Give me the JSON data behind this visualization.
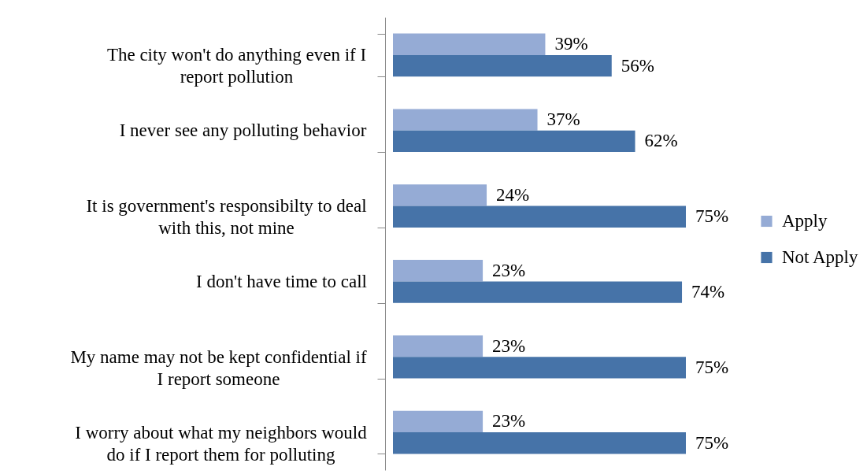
{
  "chart_data": {
    "type": "bar",
    "orientation": "horizontal",
    "categories": [
      "The city won't do anything even if I report pollution",
      "I never see any polluting behavior",
      "It is government's responsibilty to deal with this, not mine",
      "I don't have time to call",
      "My name may not be kept confidential if I report someone",
      "I worry about what my neighbors would do if I report them for polluting"
    ],
    "series": [
      {
        "name": "Apply",
        "color": "#95abd5",
        "values": [
          39,
          37,
          24,
          23,
          23,
          23
        ],
        "value_labels": [
          "39%",
          "37%",
          "24%",
          "23%",
          "23%",
          "23%"
        ]
      },
      {
        "name": "Not Apply",
        "color": "#4673a8",
        "values": [
          56,
          62,
          75,
          74,
          75,
          75
        ],
        "value_labels": [
          "56%",
          "62%",
          "75%",
          "74%",
          "75%",
          "75%"
        ]
      }
    ],
    "legend": "right",
    "tick_labels": "y"
  }
}
